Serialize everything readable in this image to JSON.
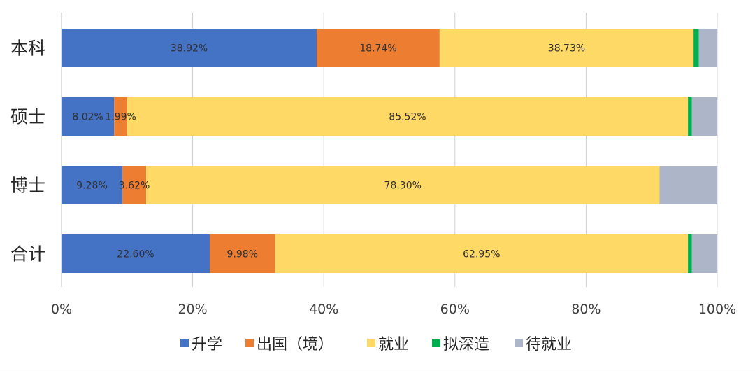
{
  "chart_data": {
    "type": "bar",
    "orientation": "horizontal",
    "stacked": true,
    "title": "",
    "xlabel": "",
    "ylabel": "",
    "categories": [
      "本科",
      "硕士",
      "博士",
      "合计"
    ],
    "xlim": [
      0,
      100
    ],
    "x_ticks": [
      "0%",
      "20%",
      "40%",
      "60%",
      "80%",
      "100%"
    ],
    "grid": true,
    "legend_position": "bottom",
    "series": [
      {
        "name": "升学",
        "color": "#4472C4",
        "values": [
          38.92,
          8.02,
          9.28,
          22.6
        ],
        "labels": [
          "38.92%",
          "8.02%",
          "9.28%",
          "22.60%"
        ]
      },
      {
        "name": "出国（境）",
        "color": "#ED7D31",
        "values": [
          18.74,
          1.99,
          3.62,
          9.98
        ],
        "labels": [
          "18.74%",
          "1.99%",
          "3.62%",
          "9.98%"
        ]
      },
      {
        "name": "就业",
        "color": "#FFD966",
        "values": [
          38.73,
          85.52,
          78.3,
          62.95
        ],
        "labels": [
          "38.73%",
          "85.52%",
          "78.30%",
          "62.95%"
        ]
      },
      {
        "name": "拟深造",
        "color": "#00B050",
        "values": [
          0.8,
          0.6,
          0.0,
          0.6
        ],
        "labels": [
          "",
          "",
          "",
          ""
        ]
      },
      {
        "name": "待就业",
        "color": "#ADB5C8",
        "values": [
          2.81,
          3.87,
          8.8,
          3.87
        ],
        "labels": [
          "",
          "",
          "",
          ""
        ]
      }
    ]
  }
}
